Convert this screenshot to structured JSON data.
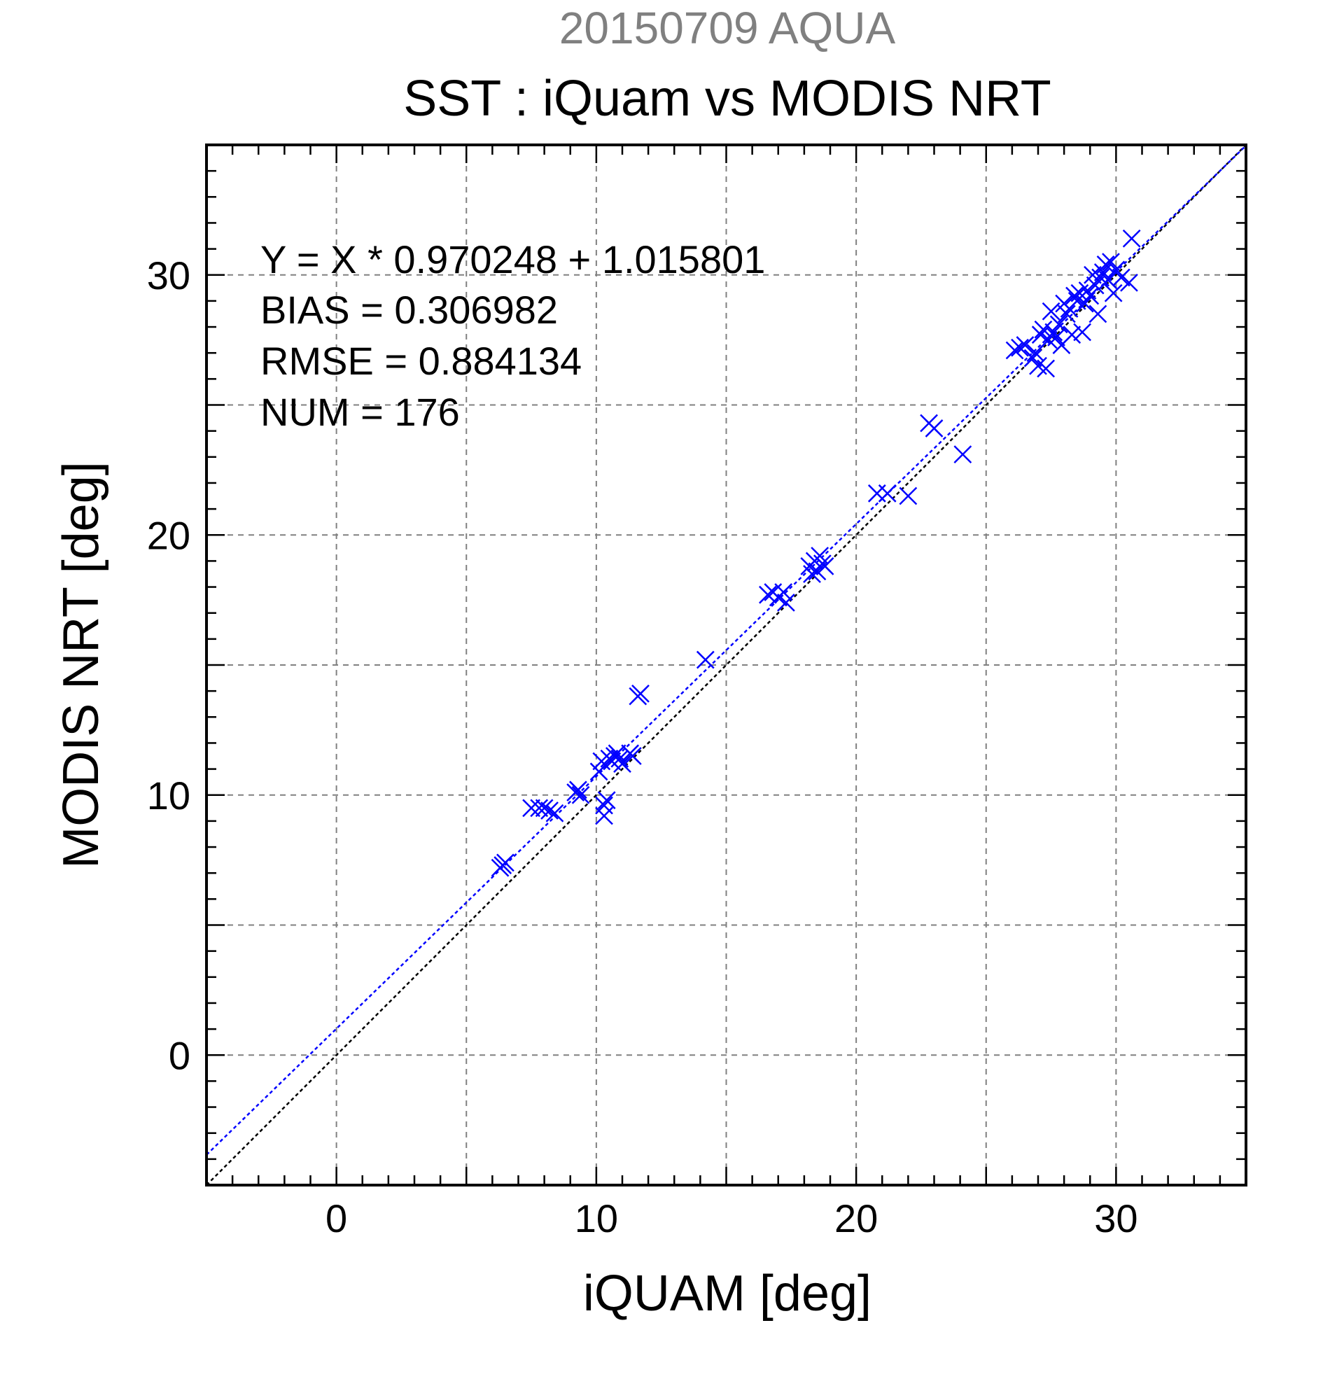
{
  "chart_data": {
    "type": "scatter",
    "supertitle": "20150709 AQUA",
    "title": "SST : iQuam vs MODIS NRT",
    "xlabel": "iQUAM [deg]",
    "ylabel": "MODIS NRT [deg]",
    "xlim": [
      -5,
      35
    ],
    "ylim": [
      -5,
      35
    ],
    "xticks": [
      0,
      10,
      20,
      30
    ],
    "yticks": [
      0,
      10,
      20,
      30
    ],
    "grid": true,
    "stats": [
      "Y = X * 0.970248 + 1.015801",
      "BIAS = 0.306982",
      "RMSE = 0.884134",
      "NUM = 176"
    ],
    "fit": {
      "slope": 0.970248,
      "intercept": 1.015801
    },
    "colors": {
      "points": "#0000ff",
      "fit_line": "#0000ff",
      "identity_line": "#000000",
      "supertitle": "#808080",
      "grid": "#808080"
    },
    "series": [
      {
        "marker": "x",
        "x": [
          6.3,
          6.5,
          6.4,
          7.5,
          7.8,
          8.0,
          8.2,
          8.4,
          9.2,
          9.3,
          9.4,
          10.1,
          10.2,
          10.3,
          10.3,
          10.4,
          10.5,
          10.6,
          10.7,
          10.8,
          10.9,
          11.0,
          11.3,
          11.4,
          11.6,
          11.7,
          14.2,
          16.6,
          16.8,
          17.0,
          17.2,
          17.3,
          18.2,
          18.3,
          18.4,
          18.5,
          18.6,
          18.7,
          18.8,
          20.8,
          21.2,
          22.0,
          22.8,
          23.0,
          24.1,
          26.1,
          26.3,
          26.5,
          26.8,
          26.9,
          27.0,
          27.1,
          27.2,
          27.3,
          27.4,
          27.5,
          27.6,
          27.7,
          27.8,
          27.9,
          28.0,
          28.1,
          28.2,
          28.3,
          28.4,
          28.5,
          28.6,
          28.7,
          28.8,
          28.9,
          29.0,
          29.1,
          29.2,
          29.3,
          29.4,
          29.5,
          29.6,
          29.7,
          29.8,
          29.9,
          30.0,
          30.2,
          30.5,
          30.6
        ],
        "y": [
          7.2,
          7.4,
          7.3,
          9.5,
          9.5,
          9.5,
          9.4,
          9.3,
          10.1,
          10.2,
          10.0,
          10.9,
          11.3,
          9.6,
          9.2,
          9.8,
          11.4,
          11.3,
          11.5,
          11.6,
          11.4,
          11.2,
          11.6,
          11.5,
          13.8,
          13.9,
          15.2,
          17.7,
          17.8,
          17.6,
          17.8,
          17.4,
          18.8,
          18.5,
          19.0,
          18.6,
          19.2,
          18.9,
          18.8,
          21.6,
          21.6,
          21.5,
          24.3,
          24.1,
          23.1,
          27.1,
          27.2,
          27.3,
          26.8,
          27.0,
          26.5,
          27.7,
          27.9,
          26.4,
          27.5,
          28.6,
          27.8,
          27.6,
          28.1,
          27.3,
          28.9,
          28.5,
          28.7,
          27.7,
          29.2,
          29.0,
          29.3,
          27.8,
          28.9,
          29.4,
          29.2,
          30.0,
          29.6,
          28.5,
          29.9,
          30.1,
          30.4,
          29.8,
          30.5,
          29.3,
          30.2,
          29.9,
          29.7,
          31.4
        ]
      }
    ]
  }
}
